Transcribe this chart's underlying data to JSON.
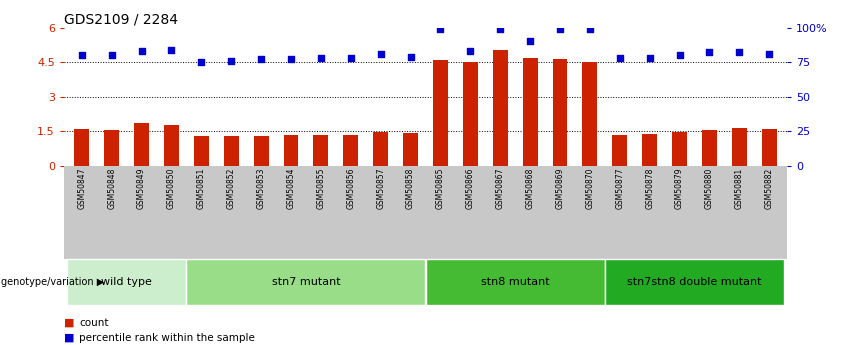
{
  "title": "GDS2109 / 2284",
  "samples": [
    "GSM50847",
    "GSM50848",
    "GSM50849",
    "GSM50850",
    "GSM50851",
    "GSM50852",
    "GSM50853",
    "GSM50854",
    "GSM50855",
    "GSM50856",
    "GSM50857",
    "GSM50858",
    "GSM50865",
    "GSM50866",
    "GSM50867",
    "GSM50868",
    "GSM50869",
    "GSM50870",
    "GSM50877",
    "GSM50878",
    "GSM50879",
    "GSM50880",
    "GSM50881",
    "GSM50882"
  ],
  "count_values": [
    1.6,
    1.55,
    1.85,
    1.75,
    1.27,
    1.27,
    1.27,
    1.32,
    1.32,
    1.32,
    1.48,
    1.42,
    4.58,
    4.52,
    5.02,
    4.68,
    4.62,
    4.52,
    1.32,
    1.38,
    1.48,
    1.55,
    1.62,
    1.58
  ],
  "percentile_values": [
    80,
    80,
    83,
    84,
    75,
    76,
    77,
    77,
    78,
    78,
    81,
    79,
    99,
    83,
    99,
    90,
    99,
    99,
    78,
    78,
    80,
    82,
    82,
    81
  ],
  "groups": [
    {
      "label": "wild type",
      "start": 0,
      "end": 4,
      "color": "#cceecc"
    },
    {
      "label": "stn7 mutant",
      "start": 4,
      "end": 12,
      "color": "#99dd88"
    },
    {
      "label": "stn8 mutant",
      "start": 12,
      "end": 18,
      "color": "#44bb33"
    },
    {
      "label": "stn7stn8 double mutant",
      "start": 18,
      "end": 24,
      "color": "#22aa22"
    }
  ],
  "bar_color": "#cc2200",
  "dot_color": "#0000cc",
  "hlines": [
    1.5,
    3.0,
    4.5
  ],
  "ylim": [
    0,
    6.0
  ],
  "ytick_vals": [
    0,
    1.5,
    3.0,
    4.5,
    6.0
  ],
  "ytick_labels_left": [
    "0",
    "1.5",
    "3",
    "4.5",
    "6"
  ],
  "ytick_labels_right": [
    "0",
    "25",
    "50",
    "75",
    "100%"
  ],
  "bar_width": 0.5,
  "tick_area_color": "#c8c8c8",
  "genotype_label": "genotype/variation",
  "legend_count": "count",
  "legend_pct": "percentile rank within the sample"
}
